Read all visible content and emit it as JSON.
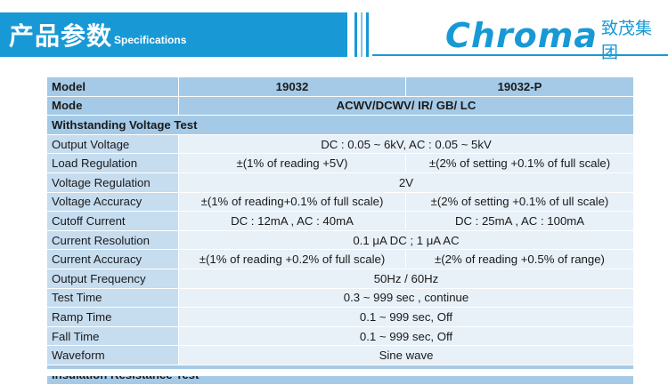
{
  "header": {
    "title_cn": "产品参数",
    "title_en": "Specifications",
    "logo_en": "Chroma",
    "logo_cn": "致茂集团",
    "accent_color": "#1899d6"
  },
  "table": {
    "header": {
      "label": "Model",
      "col1": "19032",
      "col2": "19032-P"
    },
    "mode": {
      "label": "Mode",
      "value": "ACWV/DCWV/ IR/ GB/ LC"
    },
    "section1": "Withstanding Voltage Test",
    "rows": [
      {
        "label": "Output Voltage",
        "value": "DC : 0.05 ~ 6kV, AC : 0.05 ~ 5kV"
      },
      {
        "label": "Load Regulation",
        "col1": "±(1% of reading +5V)",
        "col2": "±(2% of setting +0.1% of full scale)"
      },
      {
        "label": "Voltage Regulation",
        "value": "2V"
      },
      {
        "label": "Voltage Accuracy",
        "col1": "±(1% of reading+0.1% of full scale)",
        "col2": "±(2% of setting +0.1% of ull scale)"
      },
      {
        "label": "Cutoff Current",
        "col1": "DC : 12mA , AC : 40mA",
        "col2": "DC : 25mA , AC : 100mA"
      },
      {
        "label": "Current Resolution",
        "value": "0.1 μA DC ; 1 μA AC"
      },
      {
        "label": "Current Accuracy",
        "col1": "±(1% of reading +0.2% of full scale)",
        "col2": "±(2% of reading +0.5% of range)"
      },
      {
        "label": "Output Frequency",
        "value": "50Hz / 60Hz"
      },
      {
        "label": "Test Time",
        "value": "0.3 ~ 999 sec , continue"
      },
      {
        "label": "Ramp Time",
        "value": "0.1 ~ 999 sec, Off"
      },
      {
        "label": "Fall Time",
        "value": "0.1 ~ 999 sec, Off"
      },
      {
        "label": "Waveform",
        "value": "Sine wave"
      }
    ],
    "section2": "Insulation Resistance Test"
  }
}
